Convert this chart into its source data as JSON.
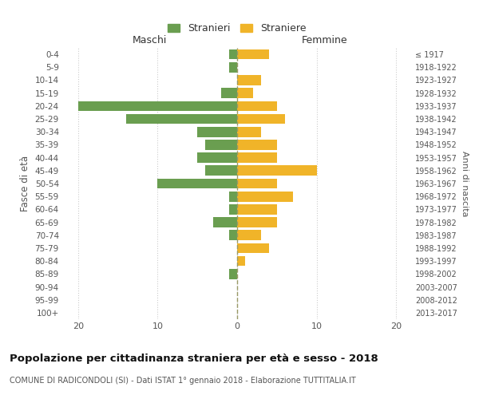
{
  "age_groups": [
    "0-4",
    "5-9",
    "10-14",
    "15-19",
    "20-24",
    "25-29",
    "30-34",
    "35-39",
    "40-44",
    "45-49",
    "50-54",
    "55-59",
    "60-64",
    "65-69",
    "70-74",
    "75-79",
    "80-84",
    "85-89",
    "90-94",
    "95-99",
    "100+"
  ],
  "birth_years": [
    "2013-2017",
    "2008-2012",
    "2003-2007",
    "1998-2002",
    "1993-1997",
    "1988-1992",
    "1983-1987",
    "1978-1982",
    "1973-1977",
    "1968-1972",
    "1963-1967",
    "1958-1962",
    "1953-1957",
    "1948-1952",
    "1943-1947",
    "1938-1942",
    "1933-1937",
    "1928-1932",
    "1923-1927",
    "1918-1922",
    "≤ 1917"
  ],
  "maschi": [
    1,
    1,
    0,
    2,
    20,
    14,
    5,
    4,
    5,
    4,
    10,
    1,
    1,
    3,
    1,
    0,
    0,
    1,
    0,
    0,
    0
  ],
  "femmine": [
    4,
    0,
    3,
    2,
    5,
    6,
    3,
    5,
    5,
    10,
    5,
    7,
    5,
    5,
    3,
    4,
    1,
    0,
    0,
    0,
    0
  ],
  "color_maschi": "#6a9e50",
  "color_femmine": "#f0b429",
  "background_color": "#ffffff",
  "grid_color": "#cccccc",
  "title": "Popolazione per cittadinanza straniera per età e sesso - 2018",
  "subtitle": "COMUNE DI RADICONDOLI (SI) - Dati ISTAT 1° gennaio 2018 - Elaborazione TUTTITALIA.IT",
  "xlabel_left": "Maschi",
  "xlabel_right": "Femmine",
  "ylabel": "Fasce di età",
  "ylabel_right": "Anni di nascita",
  "legend_stranieri": "Stranieri",
  "legend_straniere": "Straniere",
  "xlim": 22
}
